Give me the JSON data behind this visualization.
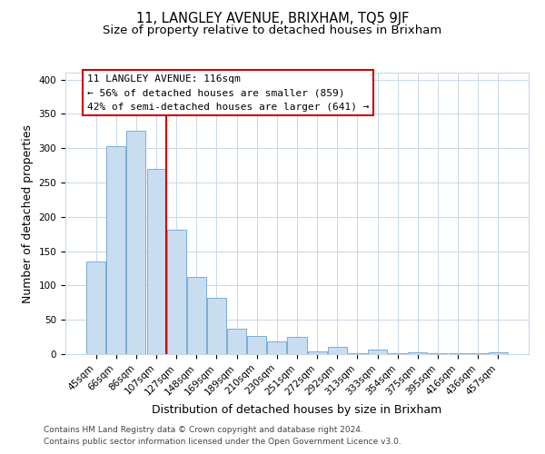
{
  "title": "11, LANGLEY AVENUE, BRIXHAM, TQ5 9JF",
  "subtitle": "Size of property relative to detached houses in Brixham",
  "xlabel": "Distribution of detached houses by size in Brixham",
  "ylabel": "Number of detached properties",
  "bar_labels": [
    "45sqm",
    "66sqm",
    "86sqm",
    "107sqm",
    "127sqm",
    "148sqm",
    "169sqm",
    "189sqm",
    "210sqm",
    "230sqm",
    "251sqm",
    "272sqm",
    "292sqm",
    "313sqm",
    "333sqm",
    "354sqm",
    "375sqm",
    "395sqm",
    "416sqm",
    "436sqm",
    "457sqm"
  ],
  "bar_values": [
    135,
    303,
    325,
    270,
    181,
    113,
    82,
    37,
    27,
    18,
    25,
    4,
    11,
    1,
    6,
    1,
    2,
    1,
    1,
    1,
    3
  ],
  "bar_color": "#c9ddf0",
  "bar_edge_color": "#7aadd4",
  "vline_x": 3.5,
  "vline_color": "#cc0000",
  "annotation_line1": "11 LANGLEY AVENUE: 116sqm",
  "annotation_line2": "← 56% of detached houses are smaller (859)",
  "annotation_line3": "42% of semi-detached houses are larger (641) →",
  "ylim": [
    0,
    410
  ],
  "yticks": [
    0,
    50,
    100,
    150,
    200,
    250,
    300,
    350,
    400
  ],
  "footer_line1": "Contains HM Land Registry data © Crown copyright and database right 2024.",
  "footer_line2": "Contains public sector information licensed under the Open Government Licence v3.0.",
  "background_color": "#ffffff",
  "grid_color": "#c8d8e8",
  "title_fontsize": 10.5,
  "subtitle_fontsize": 9.5,
  "axis_label_fontsize": 9,
  "tick_fontsize": 7.5,
  "annotation_fontsize": 8,
  "footer_fontsize": 6.5
}
